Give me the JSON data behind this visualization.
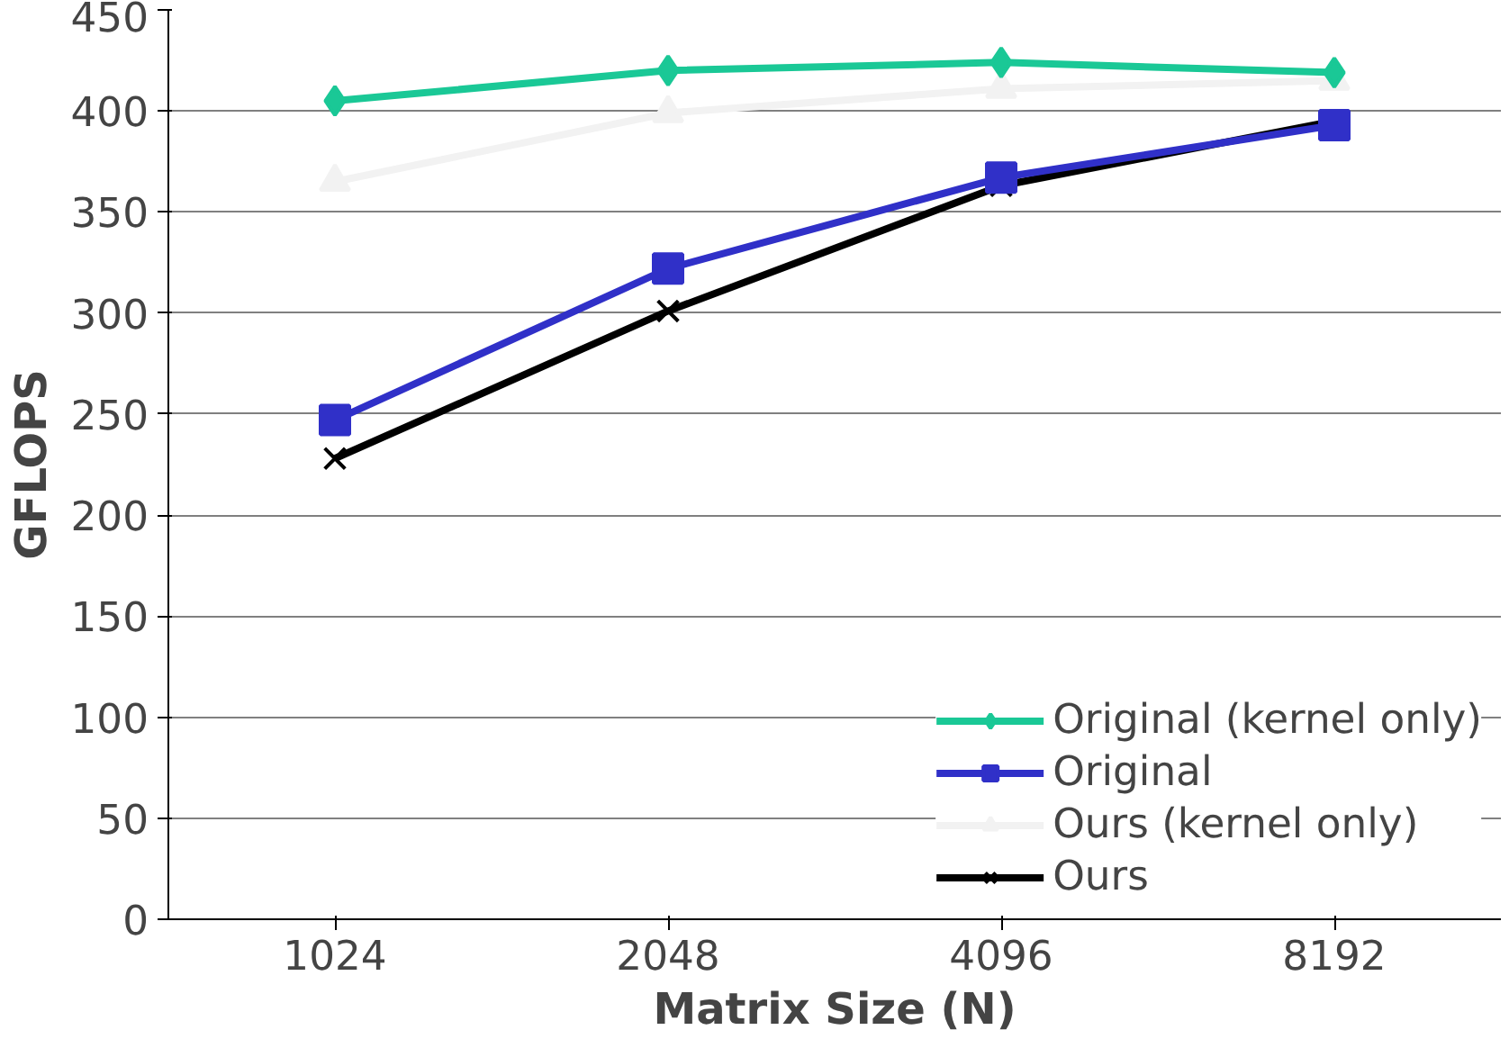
{
  "chart_data": {
    "type": "line",
    "xlabel": "Matrix Size (N)",
    "ylabel": "GFLOPS",
    "categories": [
      "1024",
      "2048",
      "4096",
      "8192"
    ],
    "ylim": [
      0,
      450
    ],
    "yticks": [
      0,
      50,
      100,
      150,
      200,
      250,
      300,
      350,
      400,
      450
    ],
    "grid": "y",
    "legend": "right",
    "series": [
      {
        "name": "Original (kernel only)",
        "color": "#1ac896",
        "marker": "diamond",
        "values": [
          405,
          420,
          424,
          419
        ]
      },
      {
        "name": "Original",
        "color": "#3030c8",
        "marker": "square",
        "values": [
          247,
          322,
          367,
          393
        ]
      },
      {
        "name": "Ours (kernel only)",
        "color": "#f2f2f2",
        "marker": "triangle",
        "values": [
          365,
          399,
          411,
          415
        ]
      },
      {
        "name": "Ours",
        "color": "#000000",
        "marker": "cross",
        "values": [
          228,
          301,
          363,
          395
        ]
      }
    ]
  }
}
